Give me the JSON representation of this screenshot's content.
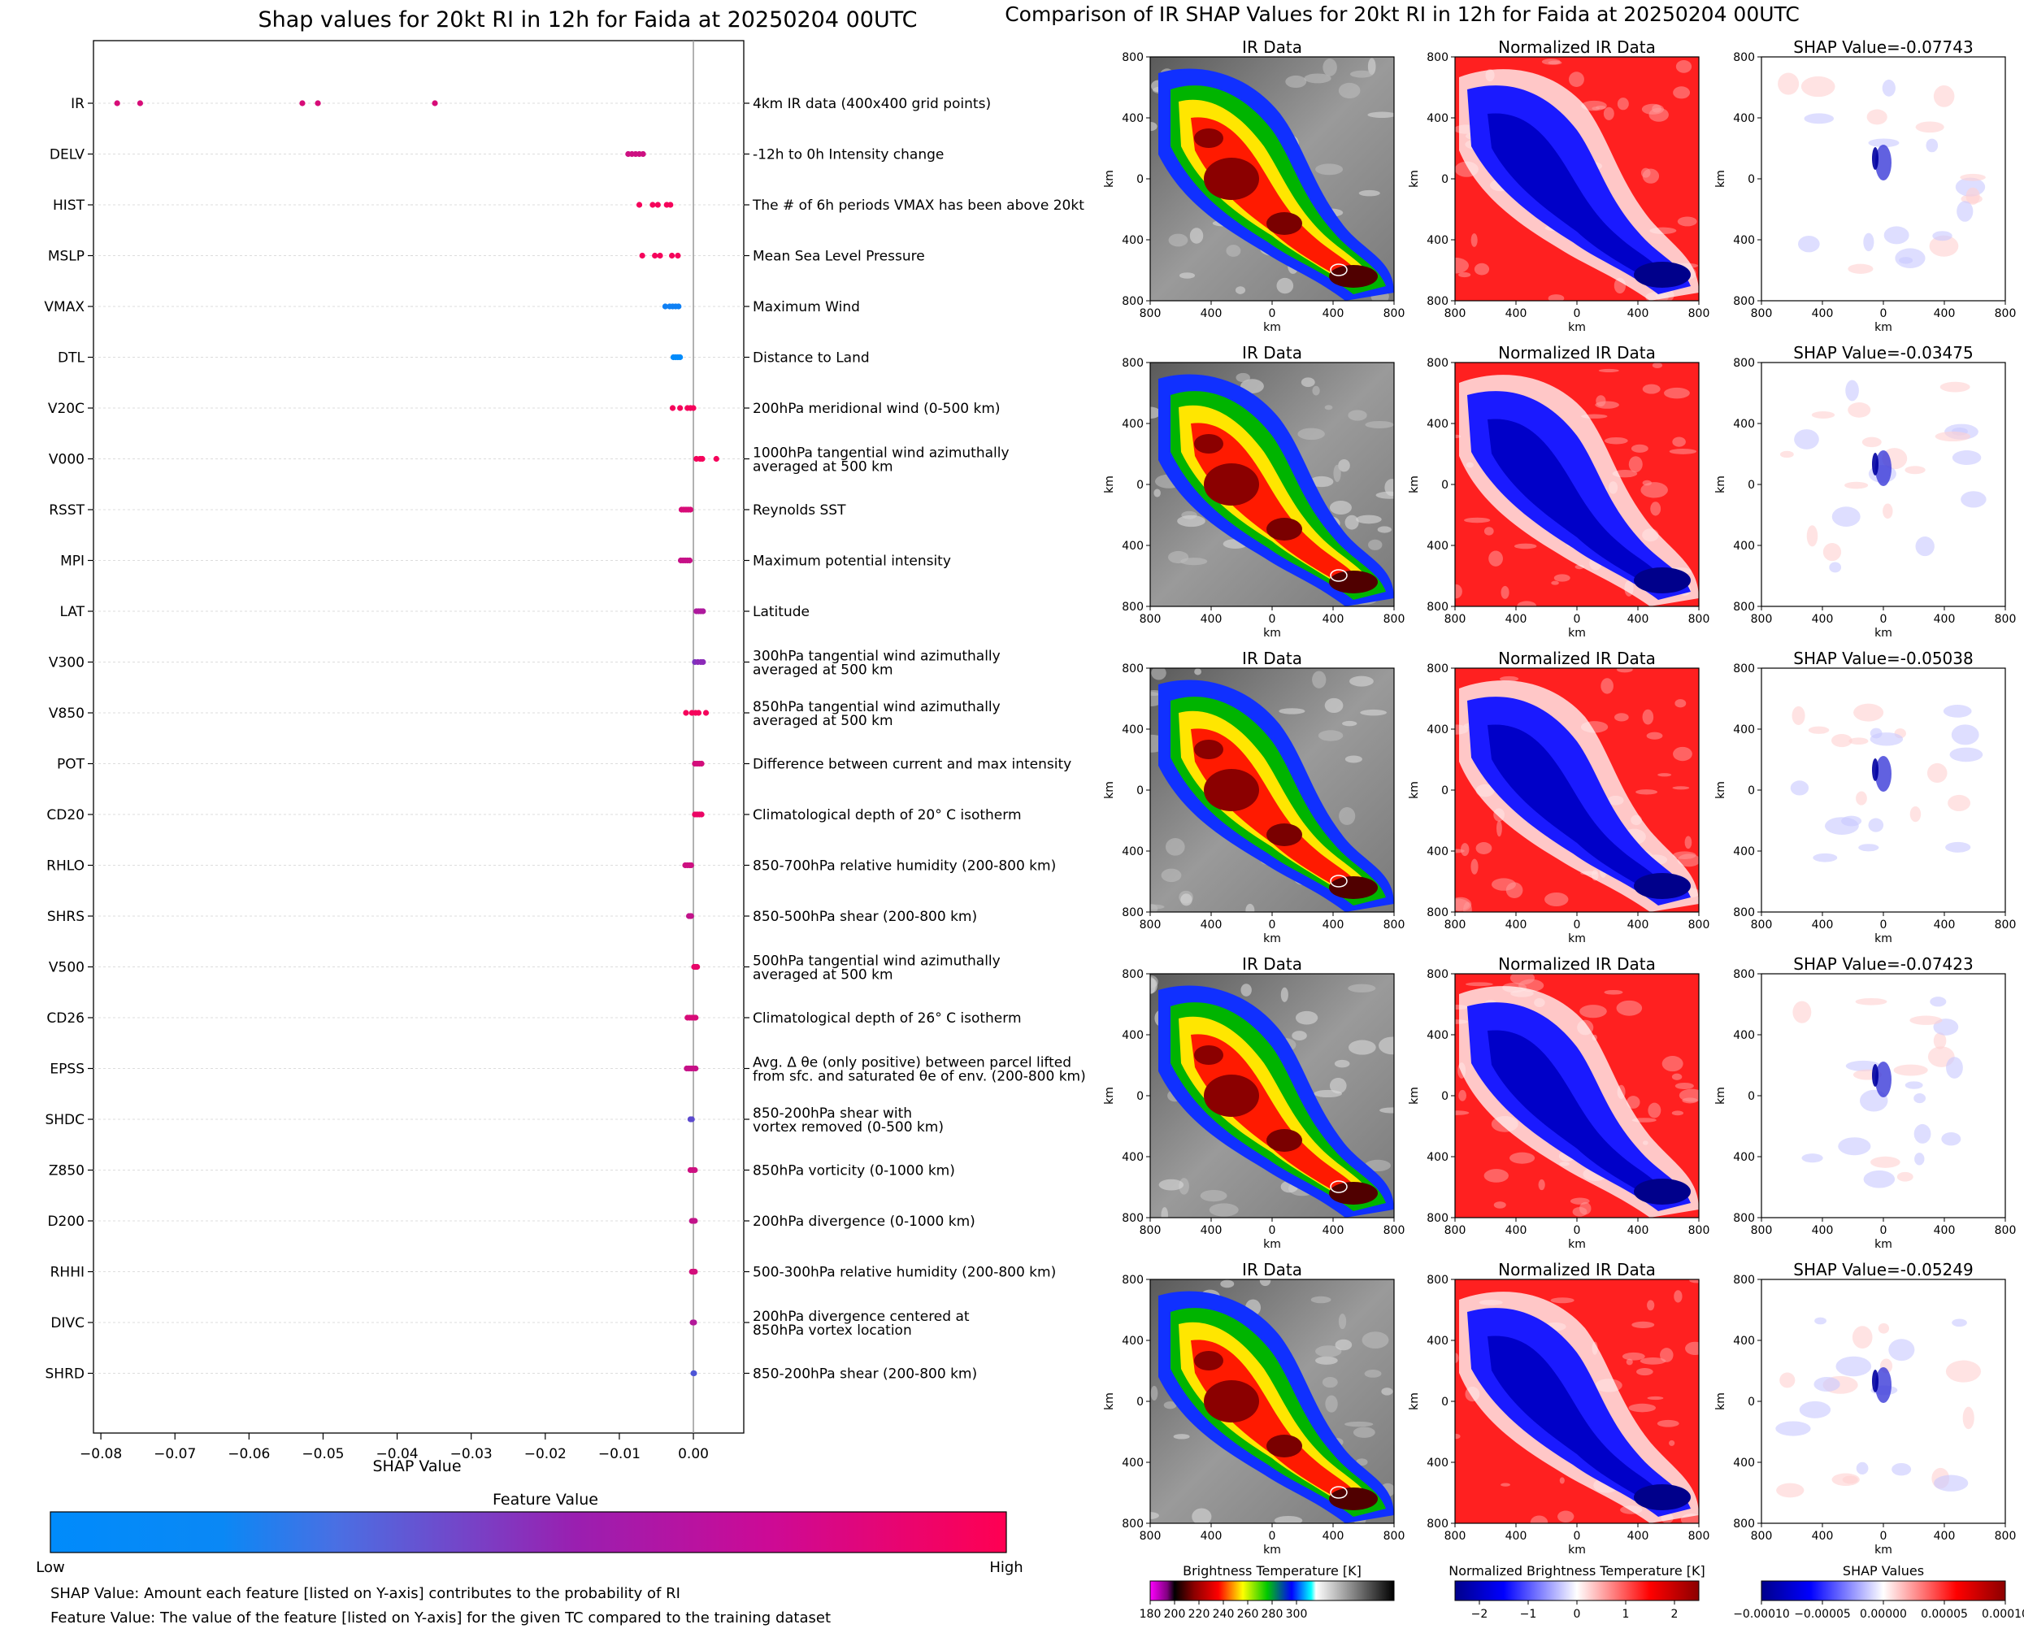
{
  "left_panel": {
    "footnotes": [
      "SHAP Value: Amount each feature [listed on Y-axis] contributes to the probability of RI",
      "Feature Value: The value of the feature [listed on Y-axis] for the given TC compared to the training dataset"
    ]
  },
  "right_panel": {
    "row_titles": {
      "ir": "IR Data",
      "norm": "Normalized IR Data"
    },
    "panel_tick_labels": [
      "800",
      "400",
      "0",
      "400",
      "800"
    ],
    "axis_unit_label": "km",
    "colorbars": [
      {
        "label": "Brightness Temperature [K]",
        "ticks": [
          "180",
          "200",
          "220",
          "240",
          "260",
          "280",
          "300"
        ]
      },
      {
        "label": "Normalized Brightness Temperature [K]",
        "ticks": [
          "−2",
          "−1",
          "0",
          "1",
          "2"
        ]
      },
      {
        "label": "SHAP Values",
        "ticks": [
          "−0.00010",
          "−0.00005",
          "0.00000",
          "0.00005",
          "0.00010"
        ]
      }
    ]
  },
  "colors": {
    "low": "#008bfb",
    "high": "#ff0052",
    "mid": "#9a1fb0"
  },
  "chart_data": [
    {
      "type": "scatter",
      "title": "Shap values for 20kt RI in 12h for Faida at 20250204 00UTC",
      "xlabel": "SHAP Value",
      "xlim": [
        -0.081,
        0.0068
      ],
      "x_ticks": [
        -0.08,
        -0.07,
        -0.06,
        -0.05,
        -0.04,
        -0.03,
        -0.02,
        -0.01,
        0.0
      ],
      "x_tick_labels": [
        "−0.08",
        "−0.07",
        "−0.06",
        "−0.05",
        "−0.04",
        "−0.03",
        "−0.02",
        "−0.01",
        "0.00"
      ],
      "colorbar": {
        "label": "Feature Value",
        "low_label": "Low",
        "high_label": "High"
      },
      "features": [
        {
          "name": "IR",
          "description": [
            "4km IR data (400x400 grid points)"
          ],
          "points": [
            [
              -0.0778,
              0.8
            ],
            [
              -0.0747,
              0.8
            ],
            [
              -0.0528,
              0.8
            ],
            [
              -0.0507,
              0.8
            ],
            [
              -0.0349,
              0.8
            ]
          ]
        },
        {
          "name": "DELV",
          "description": [
            "-12h to 0h Intensity change"
          ],
          "points": [
            [
              -0.0088,
              0.75
            ],
            [
              -0.0083,
              0.75
            ],
            [
              -0.0078,
              0.75
            ],
            [
              -0.0073,
              0.75
            ],
            [
              -0.0068,
              0.75
            ]
          ]
        },
        {
          "name": "HIST",
          "description": [
            "The # of 6h periods VMAX has been above 20kt"
          ],
          "points": [
            [
              -0.0073,
              0.95
            ],
            [
              -0.0055,
              0.95
            ],
            [
              -0.0048,
              0.95
            ],
            [
              -0.0036,
              0.95
            ],
            [
              -0.0031,
              0.95
            ]
          ]
        },
        {
          "name": "MSLP",
          "description": [
            "Mean Sea Level Pressure"
          ],
          "points": [
            [
              -0.0069,
              0.95
            ],
            [
              -0.0052,
              0.95
            ],
            [
              -0.0045,
              0.95
            ],
            [
              -0.0029,
              0.95
            ],
            [
              -0.0021,
              0.95
            ]
          ]
        },
        {
          "name": "VMAX",
          "description": [
            "Maximum Wind"
          ],
          "points": [
            [
              -0.0038,
              0.05
            ],
            [
              -0.0032,
              0.05
            ],
            [
              -0.0028,
              0.05
            ],
            [
              -0.0024,
              0.05
            ],
            [
              -0.002,
              0.05
            ]
          ]
        },
        {
          "name": "DTL",
          "description": [
            "Distance to Land"
          ],
          "points": [
            [
              -0.0027,
              0.0
            ],
            [
              -0.0024,
              0.0
            ],
            [
              -0.0021,
              0.0
            ],
            [
              -0.0018,
              0.0
            ]
          ]
        },
        {
          "name": "V20C",
          "description": [
            "200hPa meridional wind (0-500 km)"
          ],
          "points": [
            [
              -0.0028,
              0.95
            ],
            [
              -0.0018,
              0.95
            ],
            [
              -0.0008,
              0.95
            ],
            [
              -0.0004,
              0.95
            ],
            [
              0.0,
              0.95
            ]
          ]
        },
        {
          "name": "V000",
          "description": [
            "1000hPa tangential wind azimuthally",
            "averaged at 500 km"
          ],
          "points": [
            [
              0.0004,
              0.95
            ],
            [
              0.0009,
              0.95
            ],
            [
              0.0012,
              0.95
            ],
            [
              0.0031,
              0.95
            ]
          ]
        },
        {
          "name": "RSST",
          "description": [
            "Reynolds SST"
          ],
          "points": [
            [
              -0.0016,
              0.8
            ],
            [
              -0.0013,
              0.8
            ],
            [
              -0.001,
              0.8
            ],
            [
              -0.0007,
              0.8
            ],
            [
              -0.0004,
              0.8
            ]
          ]
        },
        {
          "name": "MPI",
          "description": [
            "Maximum potential intensity"
          ],
          "points": [
            [
              -0.0017,
              0.72
            ],
            [
              -0.0014,
              0.72
            ],
            [
              -0.0011,
              0.72
            ],
            [
              -0.0008,
              0.72
            ],
            [
              -0.0005,
              0.72
            ]
          ]
        },
        {
          "name": "LAT",
          "description": [
            "Latitude"
          ],
          "points": [
            [
              0.0004,
              0.6
            ],
            [
              0.0007,
              0.6
            ],
            [
              0.001,
              0.6
            ],
            [
              0.0013,
              0.6
            ]
          ]
        },
        {
          "name": "V300",
          "description": [
            "300hPa tangential wind azimuthally",
            "averaged at 500 km"
          ],
          "points": [
            [
              0.0002,
              0.4
            ],
            [
              0.0006,
              0.45
            ],
            [
              0.001,
              0.45
            ],
            [
              0.0013,
              0.45
            ]
          ]
        },
        {
          "name": "V850",
          "description": [
            "850hPa tangential wind azimuthally",
            "averaged at 500 km"
          ],
          "points": [
            [
              -0.001,
              0.95
            ],
            [
              -0.0002,
              0.95
            ],
            [
              0.0003,
              0.95
            ],
            [
              0.0007,
              0.95
            ],
            [
              0.0017,
              0.95
            ]
          ]
        },
        {
          "name": "POT",
          "description": [
            "Difference between current and max intensity"
          ],
          "points": [
            [
              0.0002,
              0.78
            ],
            [
              0.0005,
              0.78
            ],
            [
              0.0008,
              0.78
            ],
            [
              0.0011,
              0.78
            ]
          ]
        },
        {
          "name": "CD20",
          "description": [
            "Climatological depth of 20° C isotherm"
          ],
          "points": [
            [
              0.0002,
              0.9
            ],
            [
              0.0005,
              0.9
            ],
            [
              0.0008,
              0.9
            ],
            [
              0.0011,
              0.9
            ]
          ]
        },
        {
          "name": "RHLO",
          "description": [
            "850-700hPa relative humidity (200-800 km)"
          ],
          "points": [
            [
              -0.0011,
              0.75
            ],
            [
              -0.0008,
              0.75
            ],
            [
              -0.0005,
              0.75
            ],
            [
              -0.0003,
              0.75
            ]
          ]
        },
        {
          "name": "SHRS",
          "description": [
            "850-500hPa shear (200-800 km)"
          ],
          "points": [
            [
              -0.0006,
              0.7
            ],
            [
              -0.0004,
              0.7
            ],
            [
              -0.0003,
              0.7
            ]
          ]
        },
        {
          "name": "V500",
          "description": [
            "500hPa tangential wind azimuthally",
            "averaged at 500 km"
          ],
          "points": [
            [
              0.0001,
              0.88
            ],
            [
              0.0003,
              0.88
            ],
            [
              0.0005,
              0.88
            ]
          ]
        },
        {
          "name": "CD26",
          "description": [
            "Climatological depth of 26° C isotherm"
          ],
          "points": [
            [
              -0.0008,
              0.8
            ],
            [
              -0.0005,
              0.8
            ],
            [
              -0.0002,
              0.8
            ],
            [
              0.0001,
              0.8
            ],
            [
              0.0003,
              0.8
            ]
          ]
        },
        {
          "name": "EPSS",
          "description": [
            "Avg. Δ θe (only positive) between parcel lifted",
            "from sfc. and saturated θe of env. (200-800 km)"
          ],
          "points": [
            [
              -0.0009,
              0.72
            ],
            [
              -0.0006,
              0.72
            ],
            [
              -0.0003,
              0.72
            ],
            [
              0.0,
              0.72
            ],
            [
              0.0003,
              0.72
            ]
          ]
        },
        {
          "name": "SHDC",
          "description": [
            "850-200hPa shear with",
            "vortex removed (0-500 km)"
          ],
          "points": [
            [
              -0.0004,
              0.3
            ],
            [
              -0.0002,
              0.3
            ]
          ]
        },
        {
          "name": "Z850",
          "description": [
            "850hPa vorticity (0-1000 km)"
          ],
          "points": [
            [
              -0.0004,
              0.75
            ],
            [
              -0.0001,
              0.75
            ],
            [
              0.0002,
              0.75
            ]
          ]
        },
        {
          "name": "D200",
          "description": [
            "200hPa divergence (0-1000 km)"
          ],
          "points": [
            [
              -0.0002,
              0.7
            ],
            [
              0.0,
              0.7
            ],
            [
              0.0002,
              0.7
            ]
          ]
        },
        {
          "name": "RHHI",
          "description": [
            "500-300hPa relative humidity (200-800 km)"
          ],
          "points": [
            [
              -0.0002,
              0.78
            ],
            [
              0.0,
              0.78
            ],
            [
              0.0002,
              0.78
            ]
          ]
        },
        {
          "name": "DIVC",
          "description": [
            "200hPa divergence centered at",
            "850hPa vortex location"
          ],
          "points": [
            [
              -0.0001,
              0.62
            ],
            [
              0.0001,
              0.62
            ]
          ]
        },
        {
          "name": "SHRD",
          "description": [
            "850-200hPa shear (200-800 km)"
          ],
          "points": [
            [
              0.0,
              0.25
            ],
            [
              0.0001,
              0.25
            ]
          ]
        }
      ]
    },
    {
      "type": "heatmap",
      "title": "Comparison of IR SHAP Values for 20kt RI in 12h for Faida at 20250204 00UTC",
      "xlabel": "km",
      "ylabel": "km",
      "xlim": [
        -800,
        800
      ],
      "ylim": [
        -800,
        800
      ],
      "rows": [
        {
          "shap_title": "SHAP Value=-0.07743"
        },
        {
          "shap_title": "SHAP Value=-0.03475"
        },
        {
          "shap_title": "SHAP Value=-0.05038"
        },
        {
          "shap_title": "SHAP Value=-0.07423"
        },
        {
          "shap_title": "SHAP Value=-0.05249"
        }
      ]
    }
  ]
}
